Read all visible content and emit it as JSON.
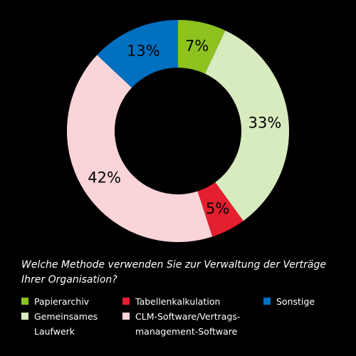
{
  "chart_data": {
    "type": "pie",
    "donut": true,
    "title": "Welche Methode verwenden Sie zur Verwaltung der Verträge Ihrer Organisation?",
    "slices": [
      {
        "label": "Papierarchiv",
        "value": 7,
        "display": "7%",
        "color": "#8dc21f"
      },
      {
        "label": "Gemeinsames\nLaufwerk",
        "value": 33,
        "display": "33%",
        "color": "#d7ebbf"
      },
      {
        "label": "Tabellenkalkulation",
        "value": 5,
        "display": "5%",
        "color": "#e41f2f"
      },
      {
        "label": "CLM-Software/Vertrags-\nmanagement-Software",
        "value": 42,
        "display": "42%",
        "color": "#f9d4d8"
      },
      {
        "label": "Sonstige",
        "value": 13,
        "display": "13%",
        "color": "#0070c0"
      }
    ],
    "legend_placement": "bottom",
    "legend_order": [
      0,
      2,
      4,
      1,
      3
    ]
  }
}
